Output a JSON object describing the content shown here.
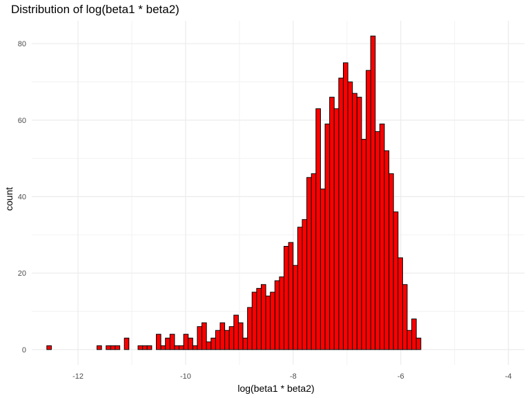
{
  "chart_data": {
    "type": "bar",
    "subtype": "histogram",
    "title": "Distribution of log(beta1 * beta2)",
    "xlabel": "log(beta1 * beta2)",
    "ylabel": "count",
    "xlim": [
      -12.86,
      -3.7
    ],
    "ylim": [
      -4,
      86
    ],
    "x_ticks": [
      -12,
      -10,
      -8,
      -6,
      -4
    ],
    "y_ticks": [
      0,
      20,
      40,
      60,
      80
    ],
    "x_tick_labels": [
      "-12",
      "-10",
      "-8",
      "-6",
      "-4"
    ],
    "y_tick_labels": [
      "0",
      "20",
      "40",
      "60",
      "80"
    ],
    "grid": true,
    "bar_fill": "#ff0000",
    "bar_stroke": "#000000",
    "bin_start": -12.58,
    "bin_width": 0.0848,
    "values": [
      1,
      0,
      0,
      0,
      0,
      0,
      0,
      0,
      0,
      0,
      0,
      1,
      0,
      1,
      1,
      1,
      0,
      3,
      0,
      0,
      1,
      1,
      1,
      0,
      4,
      1,
      3,
      4,
      1,
      1,
      4,
      3,
      1,
      6,
      7,
      2,
      3,
      5,
      7,
      5,
      6,
      9,
      7,
      3,
      11,
      15,
      16,
      17,
      14,
      15,
      18,
      19,
      27,
      28,
      22,
      32,
      34,
      45,
      46,
      63,
      42,
      59,
      66,
      63,
      71,
      75,
      70,
      67,
      66,
      55,
      73,
      82,
      57,
      59,
      52,
      46,
      36,
      24,
      17,
      5,
      8,
      3
    ]
  }
}
